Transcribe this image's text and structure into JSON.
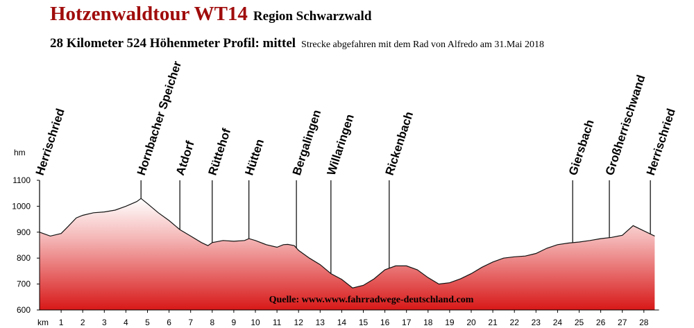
{
  "header": {
    "title": "Hotzenwaldtour WT14",
    "region": "Region Schwarzwald",
    "stats": "28 Kilometer  524 Höhenmeter  Profil: mittel",
    "note": "Strecke abgefahren mit dem Rad von Alfredo am 31.Mai 2018"
  },
  "source": "Quelle: www.www.fahrradwege-deutschland.com",
  "colors": {
    "title": "#a00c0c",
    "fill_top": "#ffffff",
    "fill_bottom": "#dd1a1a",
    "line": "#111111"
  },
  "chart_data": {
    "type": "area",
    "ylabel": "hm",
    "xlabel": "km",
    "xlim": [
      0,
      28.7
    ],
    "ylim": [
      600,
      1100
    ],
    "yticks": [
      600,
      700,
      800,
      900,
      1000,
      1100
    ],
    "xticks": [
      1,
      2,
      3,
      4,
      5,
      6,
      7,
      8,
      9,
      10,
      11,
      12,
      13,
      14,
      15,
      16,
      17,
      18,
      19,
      20,
      21,
      22,
      23,
      24,
      25,
      26,
      27,
      28
    ],
    "grid": false,
    "series": [
      {
        "x": [
          0,
          0.5,
          1.0,
          1.3,
          1.7,
          2.0,
          2.5,
          3.0,
          3.5,
          4.0,
          4.5,
          4.7,
          5.0,
          5.5,
          6.0,
          6.5,
          7.0,
          7.5,
          7.8,
          8.0,
          8.5,
          9.0,
          9.5,
          9.7,
          10.0,
          10.5,
          11.0,
          11.3,
          11.5,
          11.8,
          12.0,
          12.5,
          13.0,
          13.5,
          14.0,
          14.5,
          15.0,
          15.5,
          16.0,
          16.5,
          17.0,
          17.5,
          18.0,
          18.5,
          19.0,
          19.5,
          20.0,
          20.5,
          21.0,
          21.5,
          22.0,
          22.5,
          23.0,
          23.5,
          24.0,
          24.5,
          25.0,
          25.5,
          26.0,
          26.5,
          27.0,
          27.5,
          28.0,
          28.5
        ],
        "y": [
          900,
          885,
          895,
          920,
          955,
          965,
          975,
          978,
          985,
          1000,
          1018,
          1030,
          1010,
          975,
          945,
          910,
          885,
          860,
          848,
          860,
          868,
          865,
          868,
          875,
          868,
          852,
          842,
          852,
          853,
          848,
          830,
          800,
          775,
          740,
          718,
          685,
          695,
          720,
          755,
          770,
          770,
          755,
          725,
          700,
          705,
          720,
          740,
          765,
          785,
          800,
          805,
          808,
          818,
          838,
          852,
          858,
          862,
          868,
          875,
          880,
          888,
          925,
          905,
          885
        ]
      }
    ],
    "waypoints": [
      {
        "km": 0.0,
        "name": "Herrischried"
      },
      {
        "km": 4.7,
        "name": "Hornbacher Speicher"
      },
      {
        "km": 6.5,
        "name": "Atdorf"
      },
      {
        "km": 8.0,
        "name": "Rüttehof"
      },
      {
        "km": 9.7,
        "name": "Hütten"
      },
      {
        "km": 11.9,
        "name": "Bergalingen"
      },
      {
        "km": 13.5,
        "name": "Willaringen"
      },
      {
        "km": 16.2,
        "name": "Rickenbach"
      },
      {
        "km": 24.7,
        "name": "Giersbach"
      },
      {
        "km": 26.4,
        "name": "Großherrischwand"
      },
      {
        "km": 28.3,
        "name": "Herrischried"
      }
    ]
  }
}
